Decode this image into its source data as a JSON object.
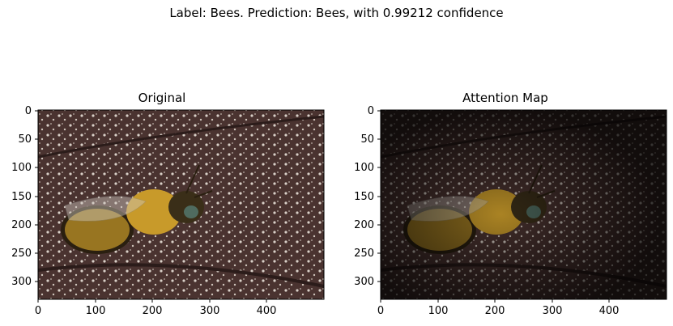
{
  "figure": {
    "suptitle": "Label: Bees. Prediction: Bees, with 0.99212 confidence"
  },
  "panels": [
    {
      "title": "Original",
      "image": "bee-on-speckled-leaf",
      "yticks": [
        "0",
        "50",
        "100",
        "150",
        "200",
        "250",
        "300"
      ],
      "xticks": [
        "0",
        "100",
        "200",
        "300",
        "400"
      ]
    },
    {
      "title": "Attention Map",
      "image": "bee-attention-map-darkened",
      "yticks": [
        "0",
        "50",
        "100",
        "150",
        "200",
        "250",
        "300"
      ],
      "xticks": [
        "0",
        "100",
        "200",
        "300",
        "400"
      ]
    }
  ],
  "colors": {
    "background_brown": "#4a3330",
    "speckle": "#d9d0c8",
    "bee_gold": "#c89a2a",
    "bee_dark": "#2a1f10",
    "eye_green": "#4f6b5f"
  }
}
